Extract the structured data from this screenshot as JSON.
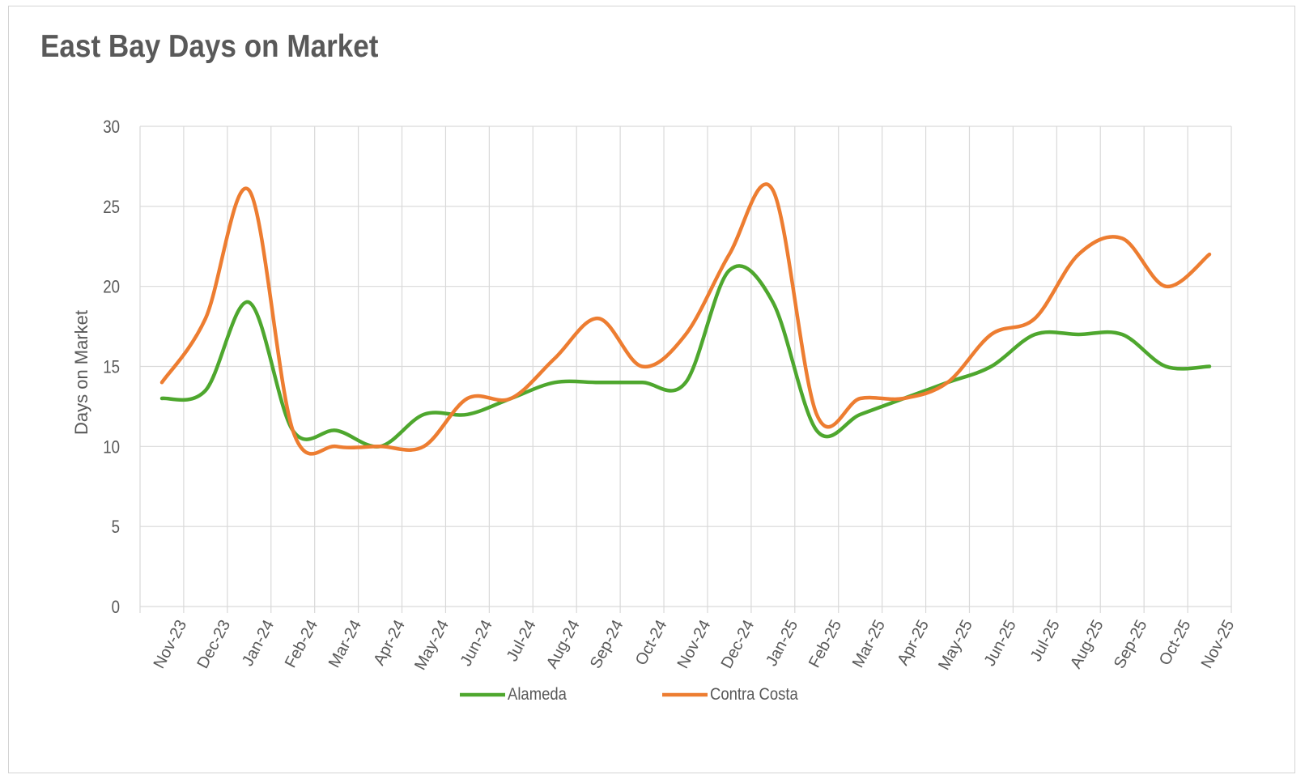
{
  "chart_data": {
    "type": "line",
    "title": "East Bay Days on Market",
    "xlabel": "",
    "ylabel": "Days on Market",
    "ylim": [
      0,
      30
    ],
    "yticks": [
      "0",
      "5",
      "10",
      "15",
      "20",
      "25",
      "30"
    ],
    "categories": [
      "Nov-23",
      "Dec-23",
      "Jan-24",
      "Feb-24",
      "Mar-24",
      "Apr-24",
      "May-24",
      "Jun-24",
      "Jul-24",
      "Aug-24",
      "Sep-24",
      "Oct-24",
      "Nov-24",
      "Dec-24",
      "Jan-25",
      "Feb-25",
      "Mar-25",
      "Apr-25",
      "May-25",
      "Jun-25",
      "Jul-25",
      "Aug-25",
      "Sep-25",
      "Oct-25",
      "Nov-25"
    ],
    "series": [
      {
        "name": "Alameda",
        "color": "#4ea72e",
        "values": [
          13,
          13.5,
          19,
          11,
          11,
          10,
          12,
          12,
          13,
          14,
          14,
          14,
          14,
          21,
          19,
          11,
          12,
          13,
          14,
          15,
          17,
          17,
          17,
          15,
          15
        ]
      },
      {
        "name": "Contra Costa",
        "color": "#ed7d31",
        "values": [
          14,
          18,
          26,
          11,
          10,
          10,
          10,
          13,
          13,
          15.5,
          18,
          15,
          17,
          22,
          26,
          12,
          13,
          13,
          14,
          17,
          18,
          22,
          23,
          20,
          22
        ]
      }
    ],
    "grid": true,
    "legend_position": "bottom"
  }
}
